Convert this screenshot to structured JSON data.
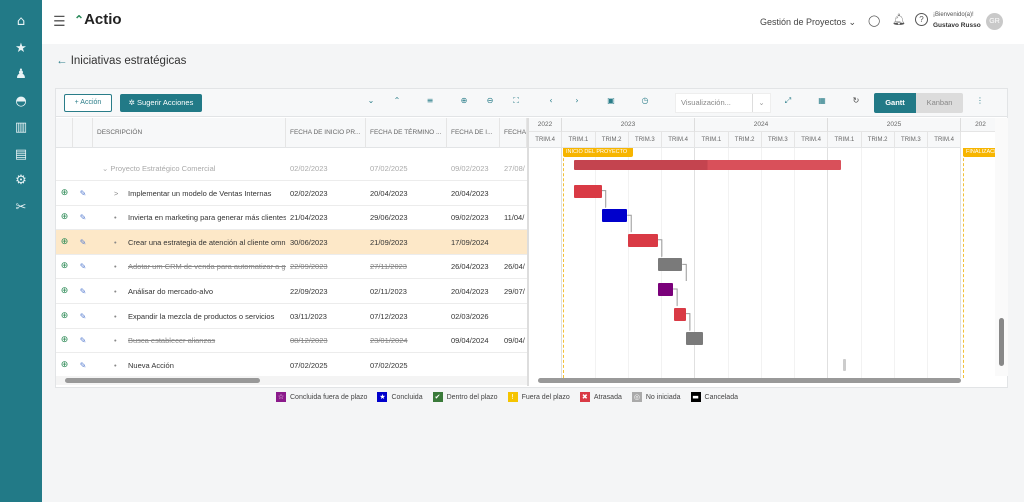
{
  "sidebar": {
    "items": [
      "home-icon",
      "star-icon",
      "user-gear-icon",
      "dashboard-icon",
      "chart-gear-icon",
      "document-gear-icon",
      "settings-icon",
      "tools-icon"
    ]
  },
  "header": {
    "logo": "Actio",
    "module": "Gestión de Proyectos",
    "welcome": "¡Bienvenido(a)!",
    "user": "Gustavo Russo",
    "initials": "GR"
  },
  "page": {
    "title": "Iniciativas estratégicas"
  },
  "toolbar": {
    "action_label": "+ Acción",
    "suggest_label": "Sugerir Acciones",
    "view_placeholder": "Visualización...",
    "gantt": "Gantt",
    "kanban": "Kanban"
  },
  "table": {
    "headers": [
      "DESCRIPCIÓN",
      "FECHA DE INICIO PR...",
      "FECHA DE TÉRMINO ...",
      "FECHA DE I...",
      "FECHA"
    ],
    "group": {
      "name": "Proyecto Estratégico Comercial",
      "c1": "02/02/2023",
      "c2": "07/02/2025",
      "c3": "09/02/2023",
      "c4": "27/08/"
    },
    "rows": [
      {
        "name": "Implementar un modelo de Ventas Internas",
        "c1": "02/02/2023",
        "c2": "20/04/2023",
        "c3": "20/04/2023",
        "c4": "",
        "status": "atrasada",
        "expander": ">",
        "strike": false,
        "hl": false
      },
      {
        "name": "Invierta en marketing para generar más clientes",
        "c1": "21/04/2023",
        "c2": "29/06/2023",
        "c3": "09/02/2023",
        "c4": "11/04/",
        "status": "concluida",
        "expander": "•",
        "strike": false,
        "hl": false
      },
      {
        "name": "Crear una estrategia de atención al cliente omnicanal",
        "c1": "30/06/2023",
        "c2": "21/09/2023",
        "c3": "17/09/2024",
        "c4": "",
        "status": "atrasada",
        "expander": "•",
        "strike": false,
        "hl": true
      },
      {
        "name": "Adotar um CRM de venda para automatizar a gestão",
        "c1": "22/09/2023",
        "c2": "27/11/2023",
        "c3": "26/04/2023",
        "c4": "26/04/",
        "status": "no_iniciada",
        "expander": "•",
        "strike": true,
        "hl": false
      },
      {
        "name": "Análisar do mercado-alvo",
        "c1": "22/09/2023",
        "c2": "02/11/2023",
        "c3": "20/04/2023",
        "c4": "29/07/",
        "status": "fuera_plazo",
        "expander": "•",
        "strike": false,
        "hl": false
      },
      {
        "name": "Expandir la mezcla de productos o servicios",
        "c1": "03/11/2023",
        "c2": "07/12/2023",
        "c3": "02/03/2026",
        "c4": "",
        "status": "atrasada",
        "expander": "•",
        "strike": false,
        "hl": false
      },
      {
        "name": "Busca establecer alianzas",
        "c1": "08/12/2023",
        "c2": "23/01/2024",
        "c3": "09/04/2024",
        "c4": "09/04/",
        "status": "no_iniciada",
        "expander": "•",
        "strike": true,
        "hl": false
      },
      {
        "name": "Nueva Acción",
        "c1": "07/02/2025",
        "c2": "07/02/2025",
        "c3": "",
        "c4": "",
        "status": "none",
        "expander": "•",
        "strike": false,
        "hl": false
      }
    ]
  },
  "gantt": {
    "years": [
      "2022",
      "2023",
      "2024",
      "2025",
      "202"
    ],
    "quarters": [
      "TRIM.4",
      "TRIM.1",
      "TRIM.2",
      "TRIM.3",
      "TRIM.4",
      "TRIM.1",
      "TRIM.2",
      "TRIM.3",
      "TRIM.4",
      "TRIM.1",
      "TRIM.2",
      "TRIM.3",
      "TRIM.4"
    ],
    "start_marker": "INICIO DEL PROYECTO",
    "end_marker": "FINALIZACIÓN"
  },
  "status_colors": {
    "atrasada": "#d93a45",
    "concluida": "#0000cc",
    "no_iniciada": "#7a7a7a",
    "fuera_plazo": "#7a007a",
    "group": "#d9505a"
  },
  "legend": [
    {
      "label": "Concluida fuera de plazo",
      "color": "#8b1a8b",
      "glyph": "☆"
    },
    {
      "label": "Concluida",
      "color": "#0000cc",
      "glyph": "★"
    },
    {
      "label": "Dentro del plazo",
      "color": "#3a7a3a",
      "glyph": "✔"
    },
    {
      "label": "Fuera del plazo",
      "color": "#f5c400",
      "glyph": "!"
    },
    {
      "label": "Atrasada",
      "color": "#d93a45",
      "glyph": "✖"
    },
    {
      "label": "No iniciada",
      "color": "#aaaaaa",
      "glyph": "◎"
    },
    {
      "label": "Cancelada",
      "color": "#000000",
      "glyph": "▬"
    }
  ]
}
